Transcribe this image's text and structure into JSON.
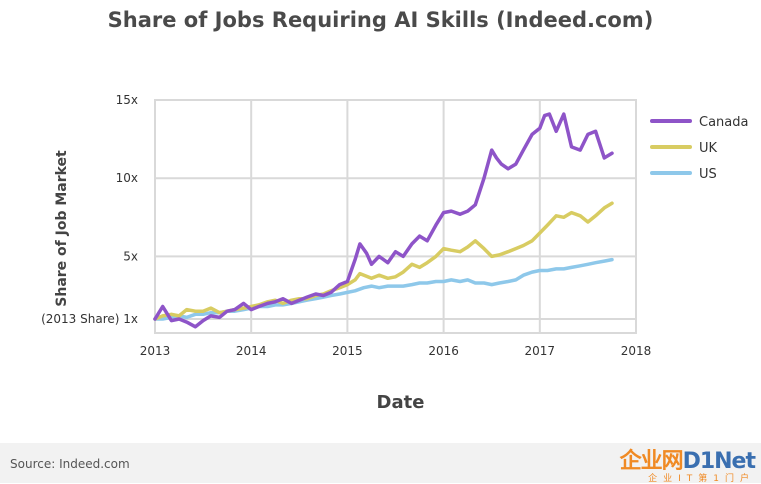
{
  "chart_data": {
    "type": "line",
    "title": "Share of Jobs Requiring AI Skills (Indeed.com)",
    "xlabel": "Date",
    "ylabel": "Share of Job Market",
    "x_ticks": [
      "2013",
      "2014",
      "2015",
      "2016",
      "2017",
      "2018"
    ],
    "y_ticks": [
      "(2013 Share) 1x",
      "5x",
      "10x",
      "15x"
    ],
    "y_tick_values": [
      1,
      5,
      10,
      15
    ],
    "xlim": [
      2013,
      2018
    ],
    "ylim": [
      0,
      15
    ],
    "grid": true,
    "legend_position": "right",
    "series": [
      {
        "name": "Canada",
        "color": "#8e54c8",
        "points": [
          [
            2013.0,
            1.0
          ],
          [
            2013.08,
            1.8
          ],
          [
            2013.17,
            0.9
          ],
          [
            2013.25,
            1.0
          ],
          [
            2013.33,
            0.8
          ],
          [
            2013.42,
            0.5
          ],
          [
            2013.5,
            0.9
          ],
          [
            2013.58,
            1.2
          ],
          [
            2013.67,
            1.1
          ],
          [
            2013.75,
            1.5
          ],
          [
            2013.83,
            1.6
          ],
          [
            2013.92,
            2.0
          ],
          [
            2014.0,
            1.6
          ],
          [
            2014.08,
            1.8
          ],
          [
            2014.17,
            2.0
          ],
          [
            2014.25,
            2.1
          ],
          [
            2014.33,
            2.3
          ],
          [
            2014.42,
            2.0
          ],
          [
            2014.5,
            2.2
          ],
          [
            2014.58,
            2.4
          ],
          [
            2014.67,
            2.6
          ],
          [
            2014.75,
            2.5
          ],
          [
            2014.83,
            2.7
          ],
          [
            2014.92,
            3.2
          ],
          [
            2015.0,
            3.4
          ],
          [
            2015.08,
            4.8
          ],
          [
            2015.13,
            5.8
          ],
          [
            2015.2,
            5.2
          ],
          [
            2015.25,
            4.5
          ],
          [
            2015.33,
            5.0
          ],
          [
            2015.42,
            4.6
          ],
          [
            2015.5,
            5.3
          ],
          [
            2015.58,
            5.0
          ],
          [
            2015.67,
            5.8
          ],
          [
            2015.75,
            6.3
          ],
          [
            2015.83,
            6.0
          ],
          [
            2015.92,
            7.0
          ],
          [
            2016.0,
            7.8
          ],
          [
            2016.08,
            7.9
          ],
          [
            2016.17,
            7.7
          ],
          [
            2016.25,
            7.9
          ],
          [
            2016.33,
            8.3
          ],
          [
            2016.42,
            10.0
          ],
          [
            2016.5,
            11.8
          ],
          [
            2016.55,
            11.3
          ],
          [
            2016.6,
            10.9
          ],
          [
            2016.67,
            10.6
          ],
          [
            2016.75,
            10.9
          ],
          [
            2016.83,
            11.8
          ],
          [
            2016.92,
            12.8
          ],
          [
            2017.0,
            13.2
          ],
          [
            2017.05,
            14.0
          ],
          [
            2017.1,
            14.1
          ],
          [
            2017.17,
            13.0
          ],
          [
            2017.25,
            14.1
          ],
          [
            2017.33,
            12.0
          ],
          [
            2017.42,
            11.8
          ],
          [
            2017.5,
            12.8
          ],
          [
            2017.58,
            13.0
          ],
          [
            2017.67,
            11.3
          ],
          [
            2017.75,
            11.6
          ]
        ]
      },
      {
        "name": "UK",
        "color": "#d8cc62",
        "points": [
          [
            2013.0,
            1.0
          ],
          [
            2013.08,
            1.2
          ],
          [
            2013.17,
            1.3
          ],
          [
            2013.25,
            1.2
          ],
          [
            2013.33,
            1.6
          ],
          [
            2013.42,
            1.5
          ],
          [
            2013.5,
            1.5
          ],
          [
            2013.58,
            1.7
          ],
          [
            2013.67,
            1.4
          ],
          [
            2013.75,
            1.5
          ],
          [
            2013.83,
            1.6
          ],
          [
            2013.92,
            1.7
          ],
          [
            2014.0,
            1.8
          ],
          [
            2014.08,
            1.9
          ],
          [
            2014.17,
            2.1
          ],
          [
            2014.25,
            2.2
          ],
          [
            2014.33,
            2.0
          ],
          [
            2014.42,
            2.2
          ],
          [
            2014.5,
            2.3
          ],
          [
            2014.58,
            2.3
          ],
          [
            2014.67,
            2.5
          ],
          [
            2014.75,
            2.6
          ],
          [
            2014.83,
            2.8
          ],
          [
            2014.92,
            3.0
          ],
          [
            2015.0,
            3.2
          ],
          [
            2015.08,
            3.5
          ],
          [
            2015.13,
            3.9
          ],
          [
            2015.25,
            3.6
          ],
          [
            2015.33,
            3.8
          ],
          [
            2015.42,
            3.6
          ],
          [
            2015.5,
            3.7
          ],
          [
            2015.58,
            4.0
          ],
          [
            2015.67,
            4.5
          ],
          [
            2015.75,
            4.3
          ],
          [
            2015.83,
            4.6
          ],
          [
            2015.92,
            5.0
          ],
          [
            2016.0,
            5.5
          ],
          [
            2016.08,
            5.4
          ],
          [
            2016.17,
            5.3
          ],
          [
            2016.25,
            5.6
          ],
          [
            2016.33,
            6.0
          ],
          [
            2016.42,
            5.5
          ],
          [
            2016.5,
            5.0
          ],
          [
            2016.58,
            5.1
          ],
          [
            2016.67,
            5.3
          ],
          [
            2016.75,
            5.5
          ],
          [
            2016.83,
            5.7
          ],
          [
            2016.92,
            6.0
          ],
          [
            2017.0,
            6.5
          ],
          [
            2017.08,
            7.0
          ],
          [
            2017.17,
            7.6
          ],
          [
            2017.25,
            7.5
          ],
          [
            2017.33,
            7.8
          ],
          [
            2017.42,
            7.6
          ],
          [
            2017.5,
            7.2
          ],
          [
            2017.58,
            7.6
          ],
          [
            2017.67,
            8.1
          ],
          [
            2017.75,
            8.4
          ]
        ]
      },
      {
        "name": "US",
        "color": "#8ec8ea",
        "points": [
          [
            2013.0,
            1.0
          ],
          [
            2013.08,
            1.0
          ],
          [
            2013.17,
            1.1
          ],
          [
            2013.25,
            1.2
          ],
          [
            2013.33,
            1.1
          ],
          [
            2013.42,
            1.3
          ],
          [
            2013.5,
            1.3
          ],
          [
            2013.58,
            1.4
          ],
          [
            2013.67,
            1.4
          ],
          [
            2013.75,
            1.5
          ],
          [
            2013.83,
            1.5
          ],
          [
            2013.92,
            1.6
          ],
          [
            2014.0,
            1.7
          ],
          [
            2014.08,
            1.8
          ],
          [
            2014.17,
            1.8
          ],
          [
            2014.25,
            1.9
          ],
          [
            2014.33,
            1.9
          ],
          [
            2014.42,
            2.0
          ],
          [
            2014.5,
            2.1
          ],
          [
            2014.58,
            2.2
          ],
          [
            2014.67,
            2.3
          ],
          [
            2014.75,
            2.4
          ],
          [
            2014.83,
            2.5
          ],
          [
            2014.92,
            2.6
          ],
          [
            2015.0,
            2.7
          ],
          [
            2015.08,
            2.8
          ],
          [
            2015.17,
            3.0
          ],
          [
            2015.25,
            3.1
          ],
          [
            2015.33,
            3.0
          ],
          [
            2015.42,
            3.1
          ],
          [
            2015.5,
            3.1
          ],
          [
            2015.58,
            3.1
          ],
          [
            2015.67,
            3.2
          ],
          [
            2015.75,
            3.3
          ],
          [
            2015.83,
            3.3
          ],
          [
            2015.92,
            3.4
          ],
          [
            2016.0,
            3.4
          ],
          [
            2016.08,
            3.5
          ],
          [
            2016.17,
            3.4
          ],
          [
            2016.25,
            3.5
          ],
          [
            2016.33,
            3.3
          ],
          [
            2016.42,
            3.3
          ],
          [
            2016.5,
            3.2
          ],
          [
            2016.58,
            3.3
          ],
          [
            2016.67,
            3.4
          ],
          [
            2016.75,
            3.5
          ],
          [
            2016.83,
            3.8
          ],
          [
            2016.92,
            4.0
          ],
          [
            2017.0,
            4.1
          ],
          [
            2017.08,
            4.1
          ],
          [
            2017.17,
            4.2
          ],
          [
            2017.25,
            4.2
          ],
          [
            2017.33,
            4.3
          ],
          [
            2017.42,
            4.4
          ],
          [
            2017.5,
            4.5
          ],
          [
            2017.58,
            4.6
          ],
          [
            2017.67,
            4.7
          ],
          [
            2017.75,
            4.8
          ]
        ]
      }
    ]
  },
  "footer": {
    "source": "Source: Indeed.com",
    "watermark_main_a": "企业网",
    "watermark_main_b": "D1Net",
    "watermark_sub": "企业IT第1门户"
  }
}
